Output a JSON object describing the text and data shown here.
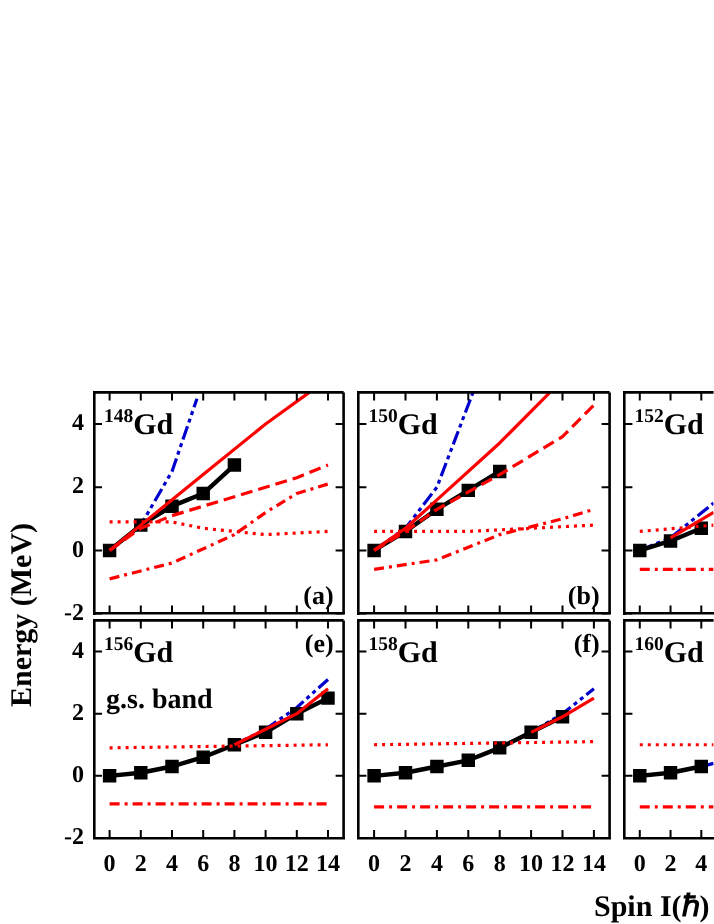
{
  "chart_data": [
    {
      "type": "line",
      "title": "$^{148}$Gd",
      "ylabel": "Energy (MeV)",
      "annotations": [
        "(a)"
      ],
      "xlim": [
        -1,
        15
      ],
      "ylim": [
        -2,
        5
      ],
      "xticks": [
        0,
        2,
        4,
        6,
        8,
        10,
        12,
        14
      ],
      "yticks": [
        -2,
        0,
        2,
        4
      ],
      "tick_labels": "y",
      "legend": false,
      "grid": false,
      "series": [
        {
          "color": "#ff0000",
          "line_style": "dotted",
          "marker": "none",
          "x": [
            0,
            4,
            6,
            8,
            10,
            14
          ],
          "values": [
            0.9,
            0.9,
            0.7,
            0.6,
            0.5,
            0.6
          ]
        },
        {
          "color": "#ff0000",
          "line_style": "dashdot",
          "marker": "none",
          "x": [
            0,
            4,
            8,
            10,
            12,
            14
          ],
          "values": [
            -0.9,
            -0.4,
            0.5,
            1.2,
            1.8,
            2.1
          ]
        },
        {
          "color": "#ff0000",
          "line_style": "dashed",
          "marker": "none",
          "x": [
            0,
            2,
            4,
            8,
            12,
            14
          ],
          "values": [
            0,
            0.7,
            1.1,
            1.7,
            2.3,
            2.7
          ]
        },
        {
          "color": "#ff0000",
          "line_style": "solid",
          "marker": "none",
          "x": [
            0,
            2,
            6,
            10,
            12.8
          ],
          "values": [
            0,
            0.8,
            2.4,
            4,
            5
          ]
        },
        {
          "color": "#000000",
          "line_style": "solid",
          "marker": "square",
          "x": [
            0,
            2,
            4,
            6,
            8
          ],
          "values": [
            0,
            0.8,
            1.4,
            1.8,
            2.7
          ]
        },
        {
          "color": "#0000cc",
          "line_style": "dashdotdot",
          "marker": "none",
          "x": [
            0,
            2,
            4,
            5.6
          ],
          "values": [
            0,
            0.8,
            2.5,
            4.8
          ]
        }
      ]
    },
    {
      "type": "line",
      "title": "$^{150}$Gd",
      "annotations": [
        "(b)"
      ],
      "xlim": [
        -1,
        15
      ],
      "ylim": [
        -2,
        5
      ],
      "xticks": [
        0,
        2,
        4,
        6,
        8,
        10,
        12,
        14
      ],
      "yticks": [
        -2,
        0,
        2,
        4
      ],
      "tick_labels": false,
      "legend": false,
      "grid": false,
      "series": [
        {
          "color": "#ff0000",
          "line_style": "dotted",
          "marker": "none",
          "x": [
            0,
            6,
            14
          ],
          "values": [
            0.6,
            0.6,
            0.8
          ]
        },
        {
          "color": "#ff0000",
          "line_style": "dashdot",
          "marker": "none",
          "x": [
            0,
            4,
            8,
            12,
            14
          ],
          "values": [
            -0.6,
            -0.3,
            0.5,
            1.0,
            1.3
          ]
        },
        {
          "color": "#ff0000",
          "line_style": "dashed",
          "marker": "none",
          "x": [
            0,
            2,
            4,
            8,
            12,
            14
          ],
          "values": [
            0,
            0.6,
            1.3,
            2.4,
            3.6,
            4.6
          ]
        },
        {
          "color": "#ff0000",
          "line_style": "solid",
          "marker": "none",
          "x": [
            0,
            2,
            4,
            8,
            11.2
          ],
          "values": [
            0,
            0.7,
            1.6,
            3.4,
            5
          ]
        },
        {
          "color": "#000000",
          "line_style": "solid",
          "marker": "square",
          "x": [
            0,
            2,
            4,
            6,
            8
          ],
          "values": [
            0,
            0.6,
            1.3,
            1.9,
            2.5
          ]
        },
        {
          "color": "#0000cc",
          "line_style": "dashdotdot",
          "marker": "none",
          "x": [
            0,
            2,
            4,
            6.3
          ],
          "values": [
            0,
            0.7,
            2.0,
            5
          ]
        }
      ]
    },
    {
      "type": "line",
      "title": "$^{152}$Gd",
      "xlim": [
        -1,
        4.8
      ],
      "ylim": [
        -2,
        5
      ],
      "xticks": [
        0,
        2,
        4
      ],
      "yticks": [
        -2,
        0,
        2,
        4
      ],
      "tick_labels": false,
      "legend": false,
      "grid": false,
      "series": [
        {
          "color": "#ff0000",
          "line_style": "dotted",
          "marker": "none",
          "x": [
            0,
            4.8
          ],
          "values": [
            0.6,
            0.8
          ]
        },
        {
          "color": "#ff0000",
          "line_style": "dashdot",
          "marker": "none",
          "x": [
            0,
            4.8
          ],
          "values": [
            -0.6,
            -0.6
          ]
        },
        {
          "color": "#ff0000",
          "line_style": "solid",
          "marker": "none",
          "x": [
            2,
            4.8
          ],
          "values": [
            0.4,
            1.2
          ]
        },
        {
          "color": "#000000",
          "line_style": "solid",
          "marker": "square",
          "x": [
            0,
            2,
            4
          ],
          "values": [
            0,
            0.3,
            0.7
          ]
        },
        {
          "color": "#0000cc",
          "line_style": "dashdotdot",
          "marker": "none",
          "x": [
            0,
            2,
            4.8
          ],
          "values": [
            0,
            0.4,
            1.5
          ]
        }
      ]
    },
    {
      "type": "line",
      "title": "$^{156}$Gd",
      "annotations": [
        "(e)",
        "g.s. band"
      ],
      "xlim": [
        -1,
        15
      ],
      "ylim": [
        -2,
        5
      ],
      "xticks": [
        0,
        2,
        4,
        6,
        8,
        10,
        12,
        14
      ],
      "yticks": [
        -2,
        0,
        2,
        4
      ],
      "legend": false,
      "grid": false,
      "series": [
        {
          "color": "#ff0000",
          "line_style": "dotted",
          "marker": "none",
          "x": [
            0,
            14
          ],
          "values": [
            0.9,
            1.0
          ]
        },
        {
          "color": "#ff0000",
          "line_style": "dashdot",
          "marker": "none",
          "x": [
            0,
            14
          ],
          "values": [
            -0.9,
            -0.9
          ]
        },
        {
          "color": "#ff0000",
          "line_style": "solid",
          "marker": "none",
          "x": [
            8,
            10,
            12,
            14
          ],
          "values": [
            1.0,
            1.5,
            2.0,
            2.8
          ]
        },
        {
          "color": "#000000",
          "line_style": "solid",
          "marker": "square",
          "x": [
            0,
            2,
            4,
            6,
            8,
            10,
            12,
            14
          ],
          "values": [
            0,
            0.1,
            0.3,
            0.6,
            1.0,
            1.4,
            2.0,
            2.5
          ]
        },
        {
          "color": "#0000cc",
          "line_style": "dashdotdot",
          "marker": "none",
          "x": [
            8,
            10,
            12,
            14
          ],
          "values": [
            1.0,
            1.5,
            2.2,
            3.1
          ]
        }
      ]
    },
    {
      "type": "line",
      "title": "$^{158}$Gd",
      "xlabel": "Spin I(ℏ)",
      "annotations": [
        "(f)"
      ],
      "xlim": [
        -1,
        15
      ],
      "ylim": [
        -2,
        5
      ],
      "xticks": [
        0,
        2,
        4,
        6,
        8,
        10,
        12,
        14
      ],
      "yticks": [
        -2,
        0,
        2,
        4
      ],
      "tick_labels": "x",
      "legend": false,
      "grid": false,
      "series": [
        {
          "color": "#ff0000",
          "line_style": "dotted",
          "marker": "none",
          "x": [
            0,
            14
          ],
          "values": [
            1.0,
            1.1
          ]
        },
        {
          "color": "#ff0000",
          "line_style": "dashdot",
          "marker": "none",
          "x": [
            0,
            14
          ],
          "values": [
            -1.0,
            -1.0
          ]
        },
        {
          "color": "#ff0000",
          "line_style": "solid",
          "marker": "none",
          "x": [
            10,
            12,
            14
          ],
          "values": [
            1.4,
            1.9,
            2.5
          ]
        },
        {
          "color": "#000000",
          "line_style": "solid",
          "marker": "square",
          "x": [
            0,
            2,
            4,
            6,
            8,
            10,
            12
          ],
          "values": [
            0,
            0.1,
            0.3,
            0.5,
            0.9,
            1.4,
            1.9
          ]
        },
        {
          "color": "#0000cc",
          "line_style": "dashdotdot",
          "marker": "none",
          "x": [
            8,
            10,
            12,
            14
          ],
          "values": [
            0.9,
            1.4,
            2.0,
            2.8
          ]
        }
      ]
    },
    {
      "type": "line",
      "title": "$^{160}$Gd",
      "xlim": [
        -1,
        4.8
      ],
      "ylim": [
        -2,
        5
      ],
      "xticks": [
        0,
        2,
        4
      ],
      "yticks": [
        -2,
        0,
        2,
        4
      ],
      "tick_labels": "x",
      "legend": false,
      "grid": false,
      "series": [
        {
          "color": "#ff0000",
          "line_style": "dotted",
          "marker": "none",
          "x": [
            0,
            4.8
          ],
          "values": [
            1.0,
            1.0
          ]
        },
        {
          "color": "#ff0000",
          "line_style": "dashdot",
          "marker": "none",
          "x": [
            0,
            4.8
          ],
          "values": [
            -1.0,
            -1.0
          ]
        },
        {
          "color": "#000000",
          "line_style": "solid",
          "marker": "square",
          "x": [
            0,
            2,
            4
          ],
          "values": [
            0,
            0.1,
            0.3
          ]
        },
        {
          "color": "#0000cc",
          "line_style": "dashdotdot",
          "marker": "none",
          "x": [
            0,
            2,
            4,
            4.8
          ],
          "values": [
            0,
            0.1,
            0.3,
            0.4
          ]
        }
      ]
    }
  ]
}
